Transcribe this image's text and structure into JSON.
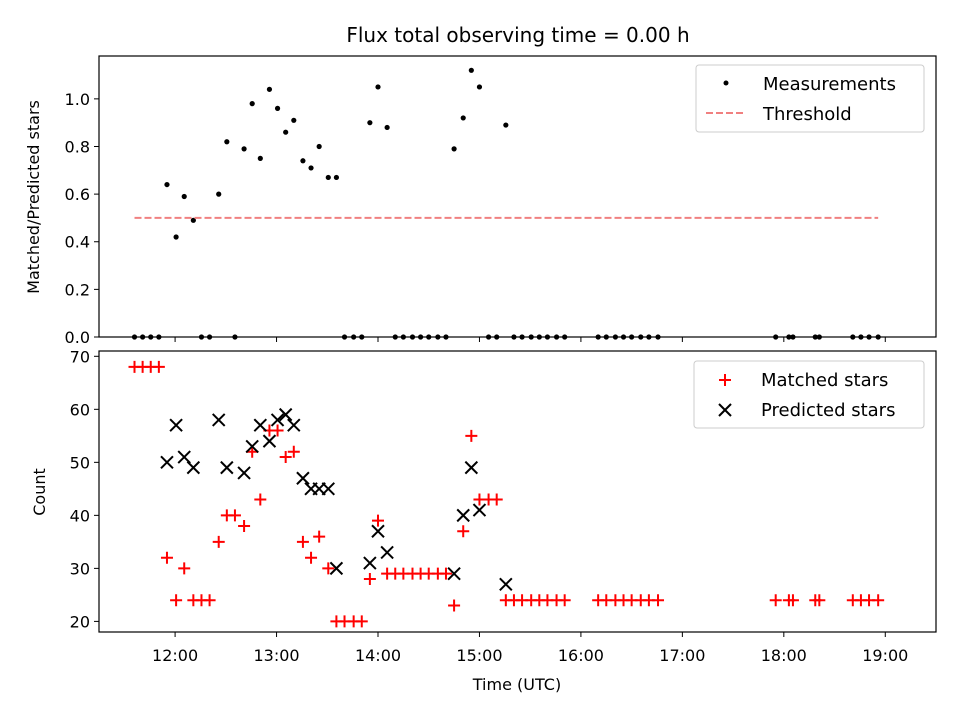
{
  "chart_data": [
    {
      "type": "scatter",
      "title": "Flux total observing time = 0.00 h",
      "xlabel": "",
      "ylabel": "Matched/Predicted stars",
      "xlim": [
        11.25,
        19.5
      ],
      "ylim": [
        0,
        1.18
      ],
      "yticks": [
        0.0,
        0.2,
        0.4,
        0.6,
        0.8,
        1.0
      ],
      "yticklabels": [
        "0.0",
        "0.2",
        "0.4",
        "0.6",
        "0.8",
        "1.0"
      ],
      "xticks": [
        12,
        13,
        14,
        15,
        16,
        17,
        18,
        19
      ],
      "grid": false,
      "legend_position": "top-right",
      "series": [
        {
          "name": "Measurements",
          "kind": "points",
          "color": "#000000",
          "x": [
            11.6,
            11.68,
            11.76,
            11.84,
            11.92,
            12.01,
            12.09,
            12.18,
            12.26,
            12.34,
            12.43,
            12.51,
            12.59,
            12.68,
            12.76,
            12.84,
            12.93,
            13.01,
            13.09,
            13.17,
            13.26,
            13.34,
            13.42,
            13.51,
            13.59,
            13.67,
            13.76,
            13.84,
            13.92,
            14.0,
            14.09,
            14.17,
            14.25,
            14.34,
            14.42,
            14.5,
            14.59,
            14.67,
            14.75,
            14.84,
            14.92,
            15.0,
            15.09,
            15.17,
            15.26,
            15.34,
            15.42,
            15.51,
            15.59,
            15.67,
            15.76,
            15.84,
            16.17,
            16.25,
            16.34,
            16.42,
            16.5,
            16.59,
            16.67,
            16.76,
            17.92,
            18.05,
            18.09,
            18.31,
            18.35,
            18.68,
            18.76,
            18.84,
            18.93
          ],
          "y": [
            0.0,
            0.0,
            0.0,
            0.0,
            0.64,
            0.42,
            0.59,
            0.49,
            0.0,
            0.0,
            0.6,
            0.82,
            0.0,
            0.79,
            0.98,
            0.75,
            1.04,
            0.96,
            0.86,
            0.91,
            0.74,
            0.71,
            0.8,
            0.67,
            0.67,
            0.0,
            0.0,
            0.0,
            0.9,
            1.05,
            0.88,
            0.0,
            0.0,
            0.0,
            0.0,
            0.0,
            0.0,
            0.0,
            0.79,
            0.92,
            1.12,
            1.05,
            0.0,
            0.0,
            0.89,
            0.0,
            0.0,
            0.0,
            0.0,
            0.0,
            0.0,
            0.0,
            0.0,
            0.0,
            0.0,
            0.0,
            0.0,
            0.0,
            0.0,
            0.0,
            0.0,
            0.0,
            0.0,
            0.0,
            0.0,
            0.0,
            0.0,
            0.0,
            0.0
          ]
        },
        {
          "name": "Threshold",
          "kind": "dashed-line",
          "color": "#f08080",
          "x": [
            11.6,
            18.93
          ],
          "y": [
            0.5,
            0.5
          ]
        }
      ]
    },
    {
      "type": "scatter",
      "title": "",
      "xlabel": "Time (UTC)",
      "ylabel": "Count",
      "xlim": [
        11.25,
        19.5
      ],
      "ylim": [
        18,
        71
      ],
      "yticks": [
        20,
        30,
        40,
        50,
        60,
        70
      ],
      "yticklabels": [
        "20",
        "30",
        "40",
        "50",
        "60",
        "70"
      ],
      "xticks": [
        12,
        13,
        14,
        15,
        16,
        17,
        18,
        19
      ],
      "xticklabels": [
        "12:00",
        "13:00",
        "14:00",
        "15:00",
        "16:00",
        "17:00",
        "18:00",
        "19:00"
      ],
      "grid": false,
      "legend_position": "top-right",
      "series": [
        {
          "name": "Matched stars",
          "kind": "plus",
          "color": "#ff0000",
          "x": [
            11.6,
            11.68,
            11.76,
            11.84,
            11.92,
            12.01,
            12.09,
            12.18,
            12.26,
            12.34,
            12.43,
            12.51,
            12.59,
            12.68,
            12.76,
            12.84,
            12.93,
            13.01,
            13.09,
            13.17,
            13.26,
            13.34,
            13.42,
            13.51,
            13.59,
            13.67,
            13.76,
            13.84,
            13.92,
            14.0,
            14.09,
            14.17,
            14.25,
            14.34,
            14.42,
            14.5,
            14.59,
            14.67,
            14.75,
            14.84,
            14.92,
            15.0,
            15.09,
            15.17,
            15.26,
            15.34,
            15.42,
            15.51,
            15.59,
            15.67,
            15.76,
            15.84,
            16.17,
            16.25,
            16.34,
            16.42,
            16.5,
            16.59,
            16.67,
            16.76,
            17.92,
            18.05,
            18.09,
            18.31,
            18.35,
            18.68,
            18.76,
            18.84,
            18.93
          ],
          "y": [
            68,
            68,
            68,
            68,
            32,
            24,
            30,
            24,
            24,
            24,
            35,
            40,
            40,
            38,
            52,
            43,
            56,
            56,
            51,
            52,
            35,
            32,
            36,
            30,
            20,
            20,
            20,
            20,
            28,
            39,
            29,
            29,
            29,
            29,
            29,
            29,
            29,
            29,
            23,
            37,
            55,
            43,
            43,
            43,
            24,
            24,
            24,
            24,
            24,
            24,
            24,
            24,
            24,
            24,
            24,
            24,
            24,
            24,
            24,
            24,
            24,
            24,
            24,
            24,
            24,
            24,
            24,
            24,
            24
          ]
        },
        {
          "name": "Predicted stars",
          "kind": "cross",
          "color": "#000000",
          "x": [
            11.92,
            12.01,
            12.09,
            12.18,
            12.43,
            12.51,
            12.68,
            12.76,
            12.84,
            12.93,
            13.01,
            13.09,
            13.17,
            13.26,
            13.34,
            13.42,
            13.51,
            13.59,
            13.92,
            14.0,
            14.09,
            14.75,
            14.84,
            14.92,
            15.0,
            15.26
          ],
          "y": [
            50,
            57,
            51,
            49,
            58,
            49,
            48,
            53,
            57,
            54,
            58,
            59,
            57,
            47,
            45,
            45,
            45,
            30,
            31,
            37,
            33,
            29,
            40,
            49,
            41,
            27
          ]
        }
      ]
    }
  ]
}
